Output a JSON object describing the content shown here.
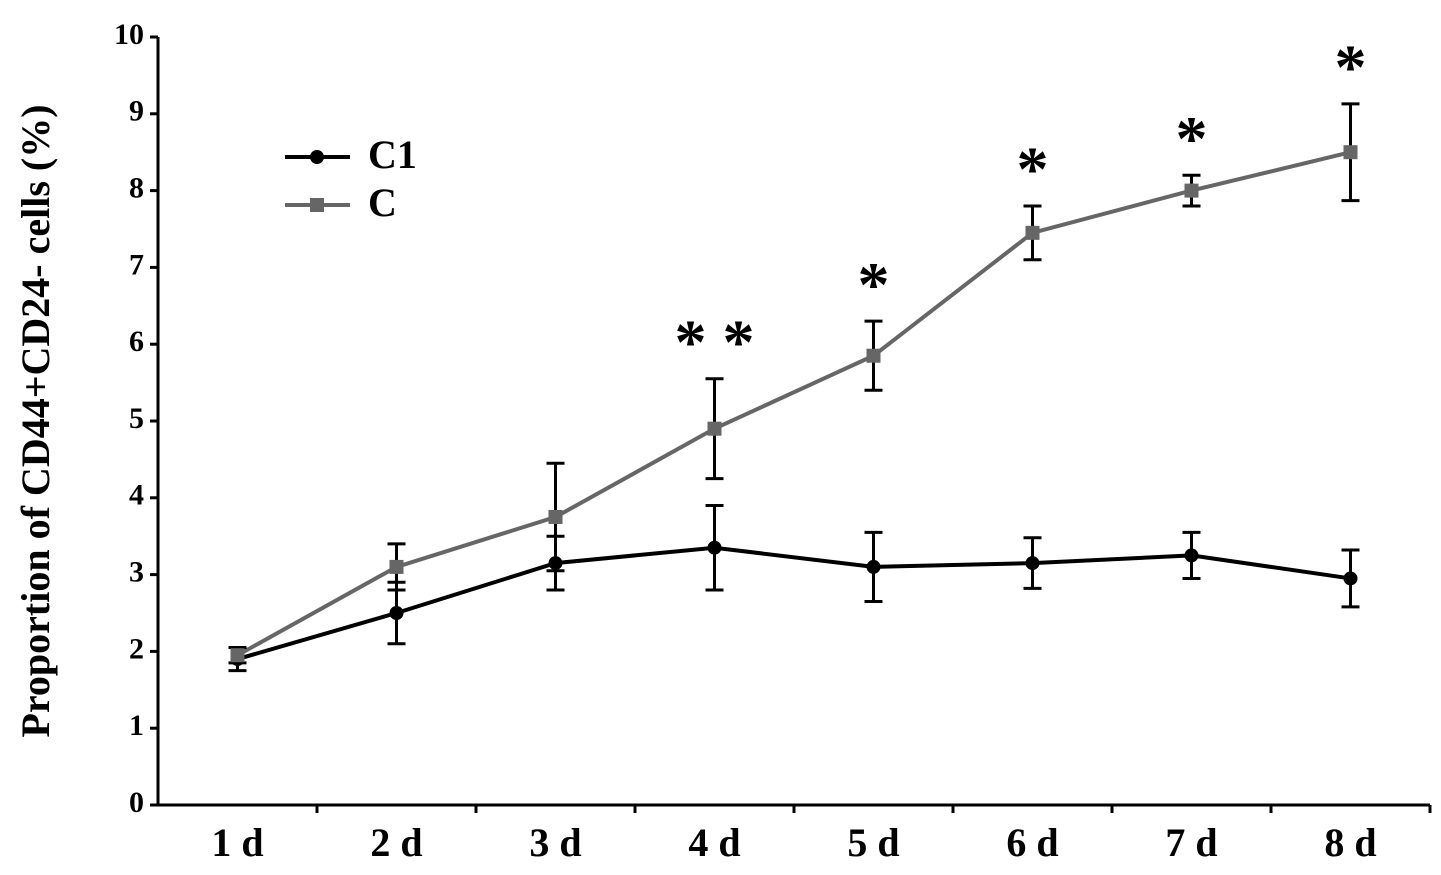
{
  "chart_data": {
    "type": "line",
    "y_label": "Proportion of CD44+CD24- cells (%)",
    "categories": [
      "1 d",
      "2 d",
      "3 d",
      "4 d",
      "5 d",
      "6 d",
      "7 d",
      "8 d"
    ],
    "series": [
      {
        "name": "C1",
        "color": "#000000",
        "marker": "circle",
        "values": [
          1.9,
          2.5,
          3.15,
          3.35,
          3.1,
          3.15,
          3.25,
          2.95
        ],
        "errors": [
          0.15,
          0.4,
          0.35,
          0.55,
          0.45,
          0.33,
          0.3,
          0.37
        ]
      },
      {
        "name": "C",
        "color": "#666666",
        "marker": "square",
        "values": [
          1.95,
          3.1,
          3.75,
          4.9,
          5.85,
          7.45,
          8.0,
          8.5
        ],
        "errors": [
          0.1,
          0.3,
          0.7,
          0.65,
          0.45,
          0.35,
          0.2,
          0.63
        ]
      }
    ],
    "annotations": [
      null,
      null,
      null,
      "* *",
      "*",
      "*",
      "*",
      "*"
    ],
    "ylim": [
      0,
      10
    ],
    "yticks": [
      0,
      1,
      2,
      3,
      4,
      5,
      6,
      7,
      8,
      9,
      10
    ],
    "legend": "upper left",
    "grid": false
  }
}
